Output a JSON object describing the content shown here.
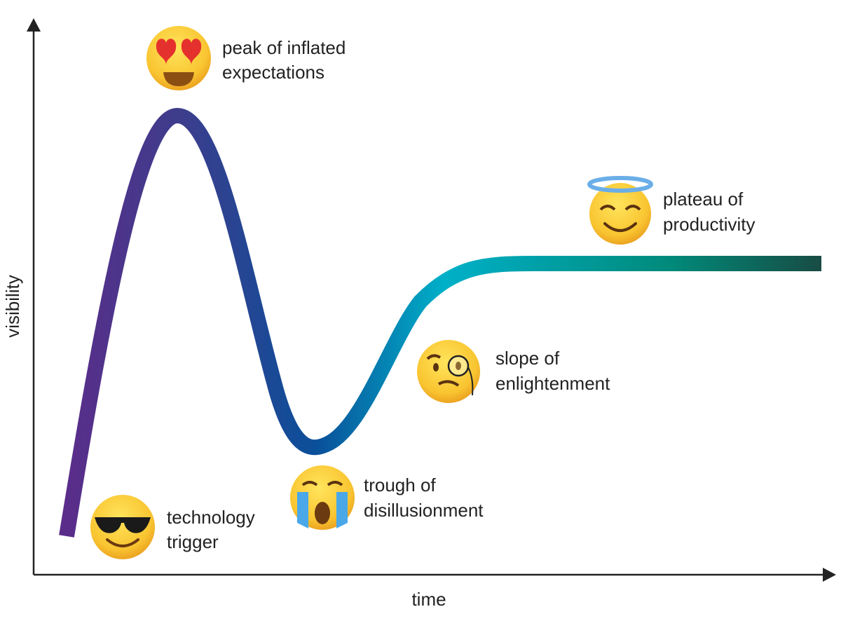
{
  "axes": {
    "x_label": "time",
    "y_label": "visibility"
  },
  "curve": {
    "gradient_colors": [
      "#5a2d8a",
      "#3d3d8c",
      "#0a4f9a",
      "#00b0c8",
      "#008a7a",
      "#184c44"
    ]
  },
  "phases": [
    {
      "line1": "technology",
      "line2": "trigger",
      "icon": "sunglasses-face-icon"
    },
    {
      "line1": "peak of inflated",
      "line2": "expectations",
      "icon": "heart-eyes-face-icon"
    },
    {
      "line1": "trough of",
      "line2": "disillusionment",
      "icon": "crying-face-icon"
    },
    {
      "line1": "slope of",
      "line2": "enlightenment",
      "icon": "monocle-face-icon"
    },
    {
      "line1": "plateau of",
      "line2": "productivity",
      "icon": "halo-face-icon"
    }
  ]
}
